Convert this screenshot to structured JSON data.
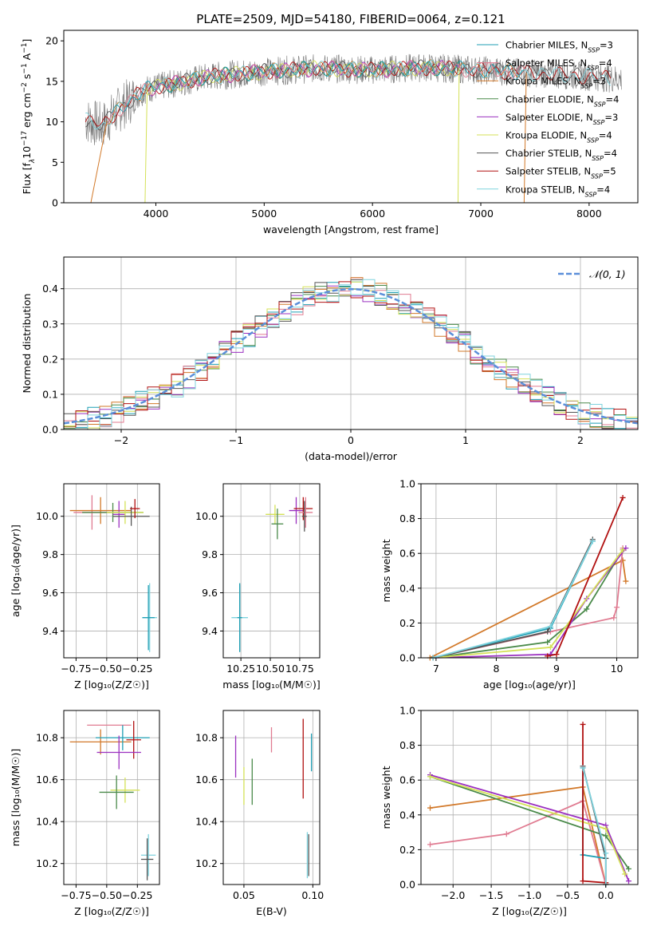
{
  "title": "PLATE=2509, MJD=54180, FIBERID=0064, z=0.121",
  "colors": {
    "chabrier_miles": "#1f9fb4",
    "salpeter_miles": "#e07b91",
    "kroupa_miles": "#d2792a",
    "chabrier_elodie": "#4a8a4a",
    "salpeter_elodie": "#9b30c0",
    "kroupa_elodie": "#d4e157",
    "chabrier_stelib": "#555555",
    "salpeter_stelib": "#b11010",
    "kroupa_stelib": "#7fd3de",
    "gauss": "#5b8fd9"
  },
  "chart_data": [
    {
      "id": "spectrum",
      "type": "line",
      "xlabel": "wavelength [Angstrom, rest frame]",
      "ylabel_parts": [
        "Flux [f",
        "λ",
        "10",
        "−17",
        " erg cm",
        "−2",
        " s",
        "−1",
        " A",
        "−1",
        "]"
      ],
      "xlim": [
        3150,
        8450
      ],
      "ylim": [
        0,
        21.3
      ],
      "xticks": [
        "4000",
        "5000",
        "6000",
        "7000",
        "8000"
      ],
      "yticks": [
        "0",
        "5",
        "10",
        "15",
        "20"
      ],
      "legend_position": "top-right",
      "legend": [
        {
          "base": "Chabrier MILES, N",
          "sub": "SSP",
          "val": "=3",
          "color": "chabrier_miles"
        },
        {
          "base": "Salpeter MILES, N",
          "sub": "SSP",
          "val": "=4",
          "color": "salpeter_miles"
        },
        {
          "base": "Kroupa MILES, N",
          "sub": "SSP",
          "val": "=3",
          "color": "kroupa_miles"
        },
        {
          "base": "Chabrier ELODIE, N",
          "sub": "SSP",
          "val": "=4",
          "color": "chabrier_elodie"
        },
        {
          "base": "Salpeter ELODIE, N",
          "sub": "SSP",
          "val": "=3",
          "color": "salpeter_elodie"
        },
        {
          "base": "Kroupa ELODIE, N",
          "sub": "SSP",
          "val": "=4",
          "color": "kroupa_elodie"
        },
        {
          "base": "Chabrier STELIB, N",
          "sub": "SSP",
          "val": "=4",
          "color": "chabrier_stelib"
        },
        {
          "base": "Salpeter STELIB, N",
          "sub": "SSP",
          "val": "=5",
          "color": "salpeter_stelib"
        },
        {
          "base": "Kroupa STELIB, N",
          "sub": "SSP",
          "val": "=4",
          "color": "kroupa_stelib"
        }
      ],
      "continuum": {
        "x": [
          3350,
          3500,
          3700,
          3900,
          4200,
          4500,
          5000,
          5500,
          6000,
          6500,
          7000,
          7500,
          8000,
          8300
        ],
        "y": [
          10.2,
          9.5,
          12.0,
          14.0,
          14.8,
          15.6,
          16.2,
          16.6,
          16.4,
          16.7,
          16.4,
          16.0,
          15.6,
          15.3
        ]
      },
      "dropouts": [
        {
          "color": "kroupa_miles",
          "x": [
            3400,
            3550
          ]
        },
        {
          "color": "kroupa_elodie",
          "x": [
            3900,
            3920
          ]
        },
        {
          "color": "kroupa_elodie",
          "x": [
            6790,
            6800
          ]
        },
        {
          "color": "kroupa_miles",
          "x": [
            7400,
            7420
          ]
        }
      ]
    },
    {
      "id": "residuals",
      "type": "step-histogram",
      "xlabel": "(data-model)/error",
      "ylabel": "Normed distribution",
      "xlim": [
        -2.5,
        2.5
      ],
      "ylim": [
        0,
        0.49
      ],
      "xticks": [
        "−2",
        "−1",
        "0",
        "1",
        "2"
      ],
      "yticks": [
        "0.0",
        "0.1",
        "0.2",
        "0.3",
        "0.4"
      ],
      "grid": true,
      "legend_position": "top-right",
      "gauss_label": "𝒩(0, 1)",
      "bin_edges": [
        -2.5,
        2.5
      ],
      "bin_count": 48
    },
    {
      "id": "z-age",
      "type": "scatter-errorbar",
      "xlabel": "Z [log₁₀(Z/Z☉)]",
      "ylabel": "age  [log₁₀(age/yr)]",
      "xlim": [
        -0.85,
        -0.07
      ],
      "ylim": [
        9.26,
        10.17
      ],
      "xticks": [
        "−0.75",
        "−0.50",
        "−0.25"
      ],
      "xtick_vals": [
        -0.75,
        -0.5,
        -0.25
      ],
      "yticks": [
        "9.4",
        "9.6",
        "9.8",
        "10.0"
      ],
      "ytick_vals": [
        9.4,
        9.6,
        9.8,
        10.0
      ],
      "grid": true,
      "points": [
        {
          "x": -0.62,
          "y": 10.02,
          "xe": 0.15,
          "ye": 0.09,
          "color": "salpeter_miles"
        },
        {
          "x": -0.55,
          "y": 10.03,
          "xe": 0.25,
          "ye": 0.07,
          "color": "kroupa_miles"
        },
        {
          "x": -0.45,
          "y": 10.02,
          "xe": 0.25,
          "ye": 0.05,
          "color": "chabrier_elodie"
        },
        {
          "x": -0.4,
          "y": 10.01,
          "xe": 0.05,
          "ye": 0.07,
          "color": "salpeter_elodie"
        },
        {
          "x": -0.35,
          "y": 10.02,
          "xe": 0.15,
          "ye": 0.06,
          "color": "kroupa_elodie"
        },
        {
          "x": -0.3,
          "y": 10.0,
          "xe": 0.15,
          "ye": 0.05,
          "color": "chabrier_stelib"
        },
        {
          "x": -0.27,
          "y": 10.04,
          "xe": 0.04,
          "ye": 0.05,
          "color": "salpeter_stelib"
        },
        {
          "x": -0.15,
          "y": 9.47,
          "xe": 0.06,
          "ye": 0.18,
          "color": "kroupa_stelib"
        },
        {
          "x": -0.16,
          "y": 9.47,
          "xe": 0.05,
          "ye": 0.17,
          "color": "chabrier_miles"
        }
      ]
    },
    {
      "id": "mass-age",
      "type": "scatter-errorbar",
      "xlabel": "mass [log₁₀(M/M☉)]",
      "ylabel": "",
      "xlim": [
        10.1,
        10.92
      ],
      "ylim": [
        9.26,
        10.17
      ],
      "xticks": [
        "10.25",
        "10.50",
        "10.75"
      ],
      "xtick_vals": [
        10.25,
        10.5,
        10.75
      ],
      "yticks": [
        "9.4",
        "9.6",
        "9.8",
        "10.0"
      ],
      "ytick_vals": [
        9.4,
        9.6,
        9.8,
        10.0
      ],
      "grid": true,
      "points": [
        {
          "x": 10.54,
          "y": 10.01,
          "xe": 0.08,
          "ye": 0.05,
          "color": "kroupa_elodie"
        },
        {
          "x": 10.56,
          "y": 9.96,
          "xe": 0.05,
          "ye": 0.08,
          "color": "chabrier_elodie"
        },
        {
          "x": 10.72,
          "y": 10.03,
          "xe": 0.06,
          "ye": 0.07,
          "color": "salpeter_elodie"
        },
        {
          "x": 10.78,
          "y": 10.04,
          "xe": 0.08,
          "ye": 0.06,
          "color": "salpeter_stelib"
        },
        {
          "x": 10.8,
          "y": 10.02,
          "xe": 0.06,
          "ye": 0.08,
          "color": "salpeter_miles"
        },
        {
          "x": 10.79,
          "y": 10.0,
          "xe": 0.02,
          "ye": 0.08,
          "color": "chabrier_stelib"
        },
        {
          "x": 10.24,
          "y": 9.47,
          "xe": 0.07,
          "ye": 0.17,
          "color": "kroupa_stelib"
        },
        {
          "x": 10.24,
          "y": 9.47,
          "xe": 0.02,
          "ye": 0.18,
          "color": "chabrier_miles"
        }
      ]
    },
    {
      "id": "age-weight",
      "type": "line",
      "xlabel": "age  [log₁₀(age/yr)]",
      "ylabel": "mass weight",
      "xlim": [
        6.75,
        10.35
      ],
      "ylim": [
        0,
        1.0
      ],
      "xticks": [
        "7",
        "8",
        "9",
        "10"
      ],
      "xtick_vals": [
        7,
        8,
        9,
        10
      ],
      "yticks": [
        "0.0",
        "0.2",
        "0.4",
        "0.6",
        "0.8",
        "1.0"
      ],
      "ytick_vals": [
        0,
        0.2,
        0.4,
        0.6,
        0.8,
        1.0
      ],
      "grid": true,
      "series": [
        {
          "color": "kroupa_miles",
          "x": [
            6.9,
            10.1,
            10.15
          ],
          "y": [
            0.0,
            0.56,
            0.44
          ]
        },
        {
          "color": "salpeter_miles",
          "x": [
            6.95,
            8.9,
            9.95,
            10.0,
            10.1
          ],
          "y": [
            0.0,
            0.15,
            0.23,
            0.29,
            0.63
          ]
        },
        {
          "color": "chabrier_miles",
          "x": [
            6.95,
            8.9,
            9.6
          ],
          "y": [
            0.0,
            0.17,
            0.67
          ]
        },
        {
          "color": "chabrier_elodie",
          "x": [
            6.95,
            8.85,
            9.5,
            10.1
          ],
          "y": [
            0.0,
            0.09,
            0.28,
            0.62
          ]
        },
        {
          "color": "salpeter_elodie",
          "x": [
            6.95,
            8.9,
            9.5,
            10.15
          ],
          "y": [
            0.0,
            0.02,
            0.34,
            0.63
          ]
        },
        {
          "color": "kroupa_elodie",
          "x": [
            6.95,
            8.9,
            10.1
          ],
          "y": [
            0.0,
            0.06,
            0.62
          ]
        },
        {
          "color": "chabrier_stelib",
          "x": [
            6.95,
            8.85,
            9.6
          ],
          "y": [
            0.0,
            0.15,
            0.68
          ]
        },
        {
          "color": "salpeter_stelib",
          "x": [
            8.85,
            9.0,
            10.1
          ],
          "y": [
            0.01,
            0.02,
            0.92
          ]
        },
        {
          "color": "kroupa_stelib",
          "x": [
            6.95,
            8.9,
            9.6
          ],
          "y": [
            0.0,
            0.18,
            0.67
          ]
        }
      ]
    },
    {
      "id": "z-mass",
      "type": "scatter-errorbar",
      "xlabel": "Z [log₁₀(Z/Z☉)]",
      "ylabel": "mass [log₁₀(M/M☉)]",
      "xlim": [
        -0.85,
        -0.07
      ],
      "ylim": [
        10.1,
        10.93
      ],
      "xticks": [
        "−0.75",
        "−0.50",
        "−0.25"
      ],
      "xtick_vals": [
        -0.75,
        -0.5,
        -0.25
      ],
      "yticks": [
        "10.2",
        "10.4",
        "10.6",
        "10.8"
      ],
      "ytick_vals": [
        10.2,
        10.4,
        10.6,
        10.8
      ],
      "grid": true,
      "points": [
        {
          "x": -0.48,
          "y": 10.86,
          "xe": 0.18,
          "ye": 0.0,
          "color": "salpeter_miles"
        },
        {
          "x": -0.55,
          "y": 10.78,
          "xe": 0.25,
          "ye": 0.06,
          "color": "kroupa_miles"
        },
        {
          "x": -0.37,
          "y": 10.8,
          "xe": 0.22,
          "ye": 0.06,
          "color": "chabrier_miles"
        },
        {
          "x": -0.28,
          "y": 10.79,
          "xe": 0.06,
          "ye": 0.09,
          "color": "salpeter_stelib"
        },
        {
          "x": -0.4,
          "y": 10.73,
          "xe": 0.18,
          "ye": 0.08,
          "color": "salpeter_elodie"
        },
        {
          "x": -0.35,
          "y": 10.55,
          "xe": 0.12,
          "ye": 0.06,
          "color": "kroupa_elodie"
        },
        {
          "x": -0.42,
          "y": 10.54,
          "xe": 0.14,
          "ye": 0.08,
          "color": "chabrier_elodie"
        },
        {
          "x": -0.16,
          "y": 10.24,
          "xe": 0.06,
          "ye": 0.1,
          "color": "kroupa_stelib"
        },
        {
          "x": -0.17,
          "y": 10.22,
          "xe": 0.05,
          "ye": 0.1,
          "color": "chabrier_stelib"
        }
      ]
    },
    {
      "id": "ebv-mass",
      "type": "scatter-errorbar",
      "xlabel": "E(B-V)",
      "ylabel": "",
      "xlim": [
        0.035,
        0.105
      ],
      "ylim": [
        10.1,
        10.93
      ],
      "xticks": [
        "0.05",
        "0.10"
      ],
      "xtick_vals": [
        0.05,
        0.1
      ],
      "yticks": [
        "10.2",
        "10.4",
        "10.6",
        "10.8"
      ],
      "ytick_vals": [
        10.2,
        10.4,
        10.6,
        10.8
      ],
      "grid": true,
      "points": [
        {
          "x": 0.044,
          "y": 10.71,
          "xe": 0,
          "ye": 0.1,
          "color": "salpeter_elodie"
        },
        {
          "x": 0.05,
          "y": 10.57,
          "xe": 0,
          "ye": 0.09,
          "color": "kroupa_elodie"
        },
        {
          "x": 0.056,
          "y": 10.59,
          "xe": 0,
          "ye": 0.11,
          "color": "chabrier_elodie"
        },
        {
          "x": 0.07,
          "y": 10.79,
          "xe": 0,
          "ye": 0.06,
          "color": "salpeter_miles"
        },
        {
          "x": 0.093,
          "y": 10.7,
          "xe": 0,
          "ye": 0.19,
          "color": "salpeter_stelib"
        },
        {
          "x": 0.099,
          "y": 10.73,
          "xe": 0,
          "ye": 0.09,
          "color": "chabrier_miles"
        },
        {
          "x": 0.096,
          "y": 10.24,
          "xe": 0,
          "ye": 0.11,
          "color": "kroupa_stelib"
        },
        {
          "x": 0.097,
          "y": 10.24,
          "xe": 0,
          "ye": 0.1,
          "color": "chabrier_stelib"
        }
      ]
    },
    {
      "id": "z-weight",
      "type": "line",
      "xlabel": "Z [log₁₀(Z/Z☉)]",
      "ylabel": "mass weight",
      "xlim": [
        -2.42,
        0.42
      ],
      "ylim": [
        0,
        1.0
      ],
      "xticks": [
        "−2.0",
        "−1.5",
        "−1.0",
        "−0.5",
        "0.0"
      ],
      "xtick_vals": [
        -2.0,
        -1.5,
        -1.0,
        -0.5,
        0.0
      ],
      "yticks": [
        "0.0",
        "0.2",
        "0.4",
        "0.6",
        "0.8",
        "1.0"
      ],
      "ytick_vals": [
        0,
        0.2,
        0.4,
        0.6,
        0.8,
        1.0
      ],
      "grid": true,
      "series": [
        {
          "color": "kroupa_miles",
          "x": [
            -2.3,
            -0.3,
            0.0
          ],
          "y": [
            0.44,
            0.56,
            0.0
          ]
        },
        {
          "color": "salpeter_miles",
          "x": [
            -2.3,
            -1.3,
            -0.3,
            0.0
          ],
          "y": [
            0.23,
            0.29,
            0.48,
            0.0
          ]
        },
        {
          "color": "chabrier_miles",
          "x": [
            -0.3,
            -0.3,
            0.0
          ],
          "y": [
            0.67,
            0.17,
            0.15
          ]
        },
        {
          "color": "chabrier_elodie",
          "x": [
            -2.3,
            0.0,
            0.3
          ],
          "y": [
            0.62,
            0.28,
            0.09
          ]
        },
        {
          "color": "salpeter_elodie",
          "x": [
            -2.3,
            0.0,
            0.3
          ],
          "y": [
            0.63,
            0.34,
            0.02
          ]
        },
        {
          "color": "kroupa_elodie",
          "x": [
            -2.3,
            0.0,
            0.25
          ],
          "y": [
            0.62,
            0.32,
            0.06
          ]
        },
        {
          "color": "chabrier_stelib",
          "x": [
            -0.3,
            0.0,
            0.0
          ],
          "y": [
            0.68,
            0.15,
            0.0
          ]
        },
        {
          "color": "salpeter_stelib",
          "x": [
            -0.3,
            -0.3,
            0.0
          ],
          "y": [
            0.92,
            0.02,
            0.01
          ]
        },
        {
          "color": "kroupa_stelib",
          "x": [
            -0.3,
            0.0,
            0.0
          ],
          "y": [
            0.67,
            0.18,
            0.0
          ]
        }
      ]
    }
  ]
}
